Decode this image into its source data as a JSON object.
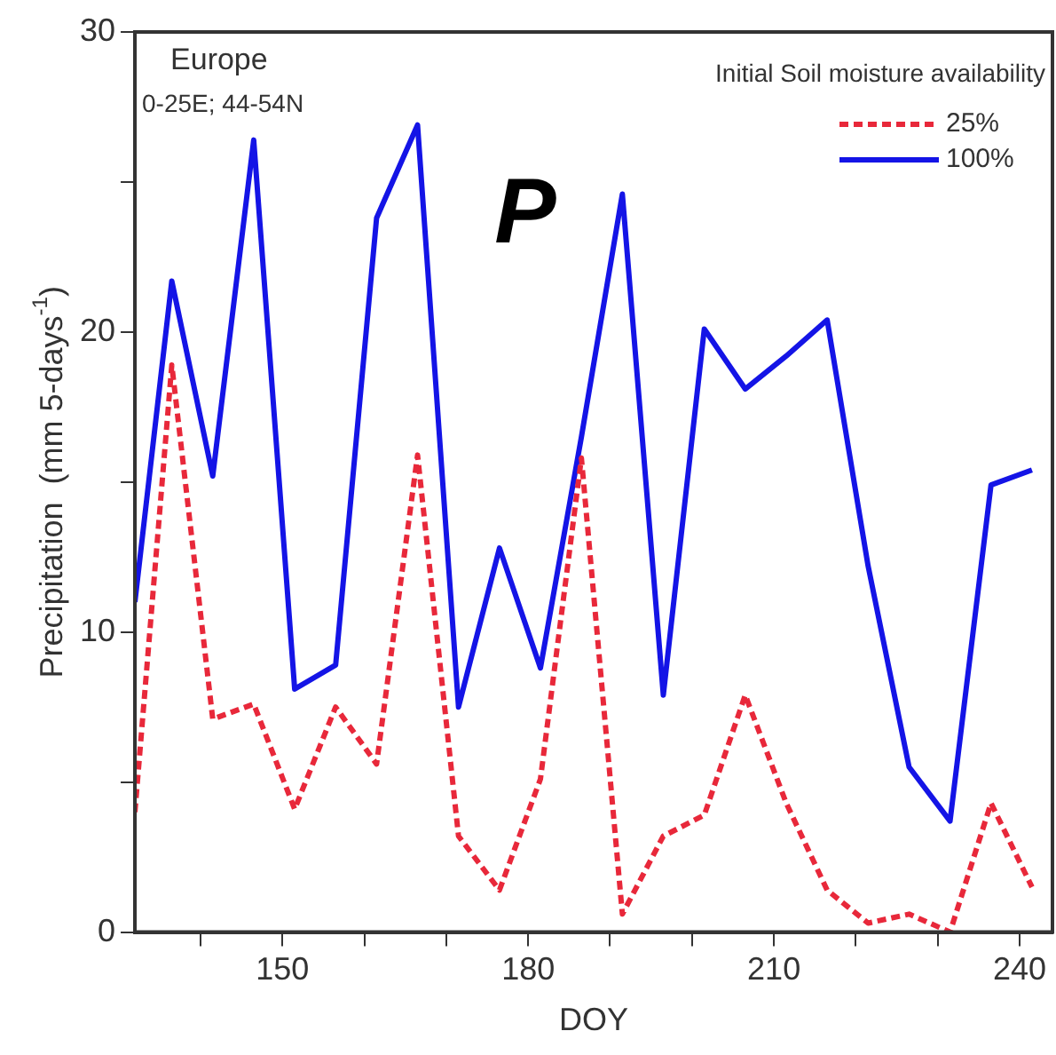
{
  "chart_data": {
    "type": "line",
    "xlabel": "DOY",
    "ylabel": "Precipitation  (mm 5-days$^{-1}$)",
    "legend_title": "Initial Soil moisture availability",
    "annotations": [
      "Europe",
      "0-25E; 44-54N",
      "P"
    ],
    "x": [
      132,
      136.5,
      141.5,
      146.5,
      151.5,
      156.5,
      161.5,
      166.5,
      171.5,
      176.5,
      181.5,
      186.5,
      191.5,
      196.5,
      201.5,
      206.5,
      211.5,
      216.5,
      221.5,
      226.5,
      231.5,
      236.5,
      241.5
    ],
    "series": [
      {
        "name": "25%",
        "color": "#e8283a",
        "line_style": "dashed",
        "values": [
          4,
          18.9,
          7.1,
          7.6,
          4.1,
          7.5,
          5.6,
          15.9,
          3.2,
          1.4,
          5.1,
          15.8,
          0.6,
          3.2,
          3.9,
          7.9,
          4.3,
          1.4,
          0.3,
          0.6,
          0,
          4.3,
          1.5
        ]
      },
      {
        "name": "100%",
        "color": "#1414e6",
        "line_style": "solid",
        "values": [
          11,
          21.7,
          15.2,
          26.4,
          8.1,
          8.9,
          23.8,
          26.9,
          7.5,
          12.8,
          8.8,
          16.5,
          24.6,
          7.9,
          20.1,
          18.1,
          19.2,
          20.4,
          12.2,
          5.5,
          3.7,
          14.9,
          15.4
        ]
      }
    ],
    "xlim": [
      132,
      244
    ],
    "xticks": [
      {
        "value": 140,
        "label": null
      },
      150,
      {
        "value": 160,
        "label": null
      },
      {
        "value": 170,
        "label": null
      },
      180,
      {
        "value": 190,
        "label": null
      },
      {
        "value": 200,
        "label": null
      },
      210,
      {
        "value": 220,
        "label": null
      },
      {
        "value": 230,
        "label": null
      },
      240
    ],
    "ylim": [
      0,
      30
    ],
    "yticks": [
      0,
      {
        "value": 5,
        "label": null
      },
      10,
      {
        "value": 15,
        "label": null
      },
      20,
      {
        "value": 25,
        "label": null
      },
      30
    ],
    "grid": false,
    "legend": "top right",
    "marker": "none"
  }
}
